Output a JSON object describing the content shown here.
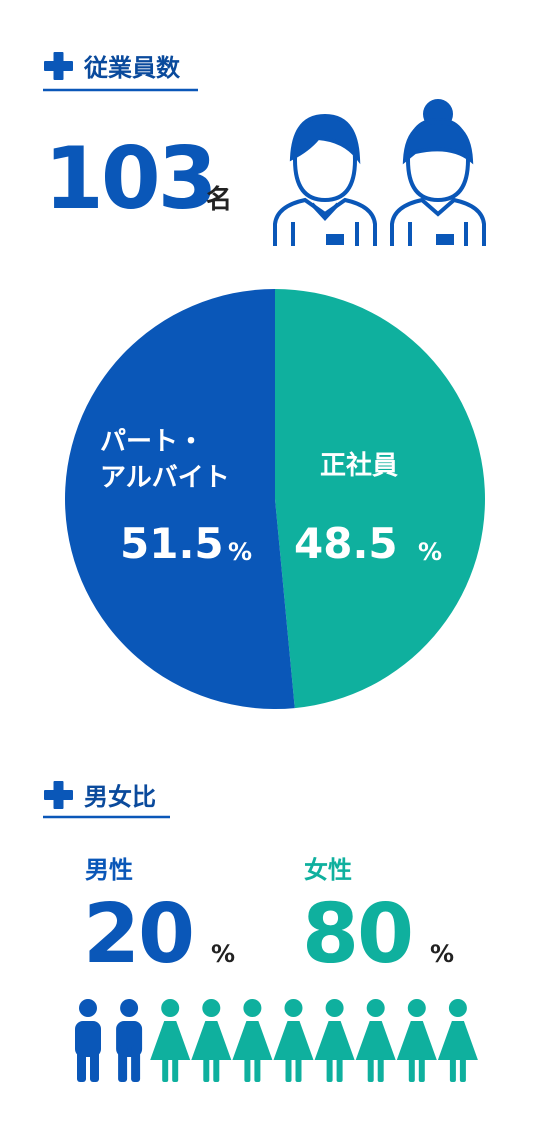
{
  "employees": {
    "heading": "従業員数",
    "count": 103,
    "unit": "名"
  },
  "chart_data": {
    "type": "pie",
    "categories": [
      "パート・\nアルバイト",
      "正社員"
    ],
    "values": [
      51.5,
      48.5
    ],
    "colors": [
      "#0a57b8",
      "#0fb09e"
    ],
    "unit": "%"
  },
  "gender": {
    "heading": "男女比",
    "unit": "%",
    "groups": [
      {
        "name": "男性",
        "value": 20,
        "color": "#0a57b8"
      },
      {
        "name": "女性",
        "value": 80,
        "color": "#0fb09e"
      }
    ]
  }
}
